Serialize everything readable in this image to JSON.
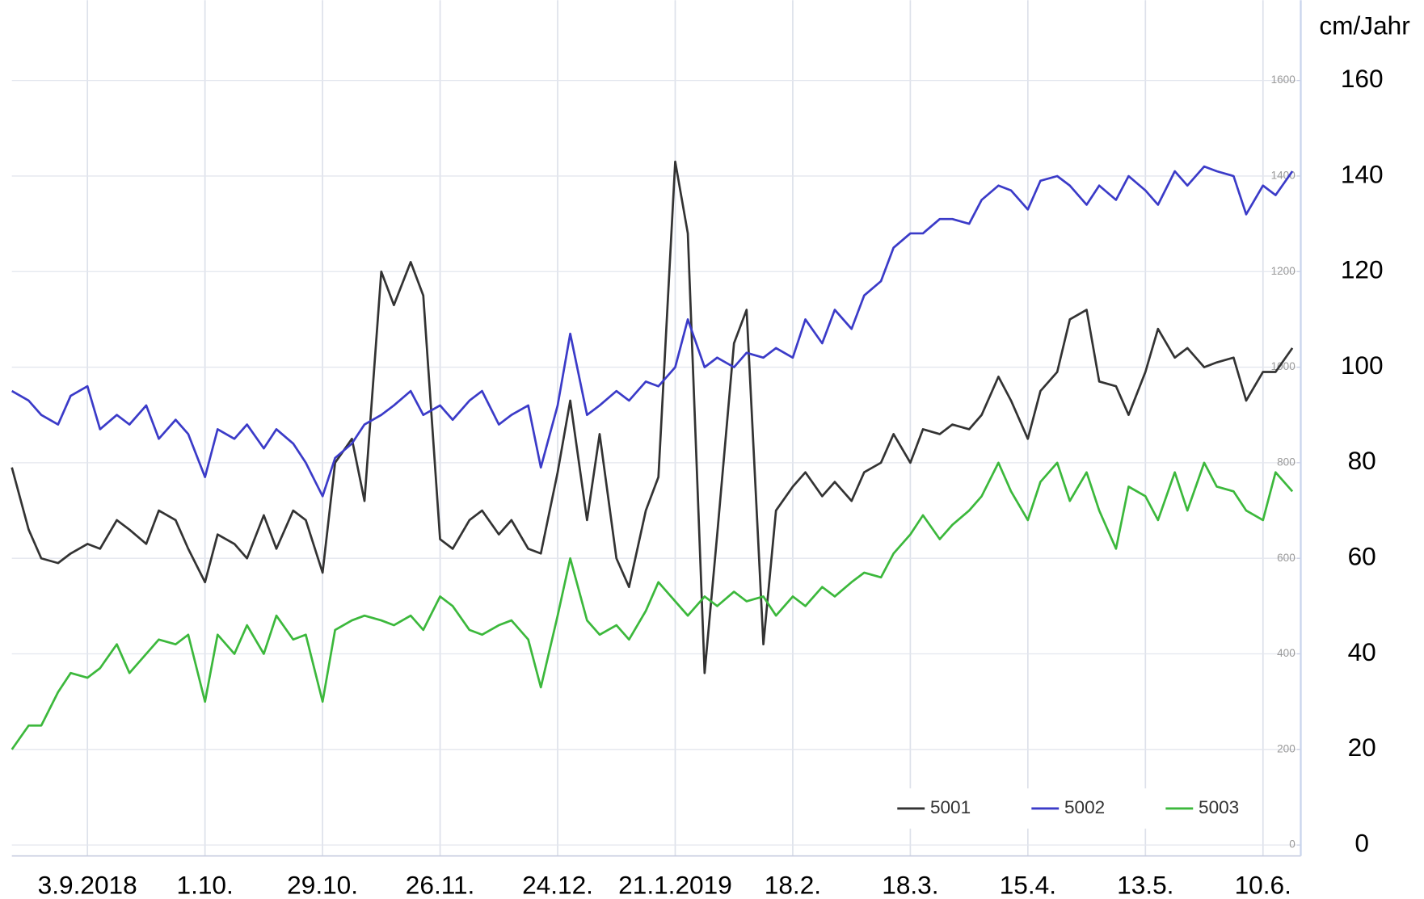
{
  "chart_data": {
    "type": "line",
    "y_label": "cm/Jahr",
    "x": [
      "2018-08-16",
      "2018-08-20",
      "2018-08-23",
      "2018-08-27",
      "2018-08-30",
      "2018-09-03",
      "2018-09-06",
      "2018-09-10",
      "2018-09-13",
      "2018-09-17",
      "2018-09-20",
      "2018-09-24",
      "2018-09-27",
      "2018-10-01",
      "2018-10-04",
      "2018-10-08",
      "2018-10-11",
      "2018-10-15",
      "2018-10-18",
      "2018-10-22",
      "2018-10-25",
      "2018-10-29",
      "2018-11-01",
      "2018-11-05",
      "2018-11-08",
      "2018-11-12",
      "2018-11-15",
      "2018-11-19",
      "2018-11-22",
      "2018-11-26",
      "2018-11-29",
      "2018-12-03",
      "2018-12-06",
      "2018-12-10",
      "2018-12-13",
      "2018-12-17",
      "2018-12-20",
      "2018-12-24",
      "2018-12-27",
      "2018-12-31",
      "2019-01-03",
      "2019-01-07",
      "2019-01-10",
      "2019-01-14",
      "2019-01-17",
      "2019-01-21",
      "2019-01-24",
      "2019-01-28",
      "2019-01-31",
      "2019-02-04",
      "2019-02-07",
      "2019-02-11",
      "2019-02-14",
      "2019-02-18",
      "2019-02-21",
      "2019-02-25",
      "2019-02-28",
      "2019-03-04",
      "2019-03-07",
      "2019-03-11",
      "2019-03-14",
      "2019-03-18",
      "2019-03-21",
      "2019-03-25",
      "2019-03-28",
      "2019-04-01",
      "2019-04-04",
      "2019-04-08",
      "2019-04-11",
      "2019-04-15",
      "2019-04-18",
      "2019-04-22",
      "2019-04-25",
      "2019-04-29",
      "2019-05-02",
      "2019-05-06",
      "2019-05-09",
      "2019-05-13",
      "2019-05-16",
      "2019-05-20",
      "2019-05-23",
      "2019-05-27",
      "2019-05-30",
      "2019-06-03",
      "2019-06-06",
      "2019-06-10",
      "2019-06-13",
      "2019-06-17"
    ],
    "xlim": [
      "2018-08-16",
      "2019-06-19"
    ],
    "xticks": [
      {
        "value": "2018-09-03",
        "label": "3.9.2018"
      },
      {
        "value": "2018-10-01",
        "label": "1.10."
      },
      {
        "value": "2018-10-29",
        "label": "29.10."
      },
      {
        "value": "2018-11-26",
        "label": "26.11."
      },
      {
        "value": "2018-12-24",
        "label": "24.12."
      },
      {
        "value": "2019-01-21",
        "label": "21.1.2019"
      },
      {
        "value": "2019-02-18",
        "label": "18.2."
      },
      {
        "value": "2019-03-18",
        "label": "18.3."
      },
      {
        "value": "2019-04-15",
        "label": "15.4."
      },
      {
        "value": "2019-05-13",
        "label": "13.5."
      },
      {
        "value": "2019-06-10",
        "label": "10.6."
      }
    ],
    "ylim": [
      0,
      160
    ],
    "yticks": [
      0,
      20,
      40,
      60,
      80,
      100,
      120,
      140,
      160
    ],
    "y2lim": [
      0,
      1600
    ],
    "y2ticks": [
      0,
      200,
      400,
      600,
      800,
      1000,
      1200,
      1400,
      1600
    ],
    "grid": true,
    "legend": "lower right",
    "series": [
      {
        "name": "5001",
        "color": "#333333",
        "values": [
          79,
          66,
          60,
          59,
          61,
          63,
          62,
          68,
          66,
          63,
          70,
          68,
          62,
          55,
          65,
          63,
          60,
          69,
          62,
          70,
          68,
          57,
          80,
          85,
          72,
          120,
          113,
          122,
          115,
          64,
          62,
          68,
          70,
          65,
          68,
          62,
          61,
          78,
          93,
          68,
          86,
          60,
          54,
          70,
          77,
          143,
          128,
          36,
          65,
          105,
          112,
          42,
          70,
          75,
          78,
          73,
          76,
          72,
          78,
          80,
          86,
          80,
          87,
          86,
          88,
          87,
          90,
          98,
          93,
          85,
          95,
          99,
          110,
          112,
          97,
          96,
          90,
          99,
          108,
          102,
          104,
          100,
          101,
          102,
          93,
          99,
          99,
          104
        ]
      },
      {
        "name": "5002",
        "color": "#3b3bc8",
        "values": [
          95,
          93,
          90,
          88,
          94,
          96,
          87,
          90,
          88,
          92,
          85,
          89,
          86,
          77,
          87,
          85,
          88,
          83,
          87,
          84,
          80,
          73,
          81,
          84,
          88,
          90,
          92,
          95,
          90,
          92,
          89,
          93,
          95,
          88,
          90,
          92,
          79,
          92,
          107,
          90,
          92,
          95,
          93,
          97,
          96,
          100,
          110,
          100,
          102,
          100,
          103,
          102,
          104,
          102,
          110,
          105,
          112,
          108,
          115,
          118,
          125,
          128,
          128,
          131,
          131,
          130,
          135,
          138,
          137,
          133,
          139,
          140,
          138,
          134,
          138,
          135,
          140,
          137,
          134,
          141,
          138,
          142,
          141,
          140,
          132,
          138,
          136,
          141
        ]
      },
      {
        "name": "5003",
        "color": "#3cb83c",
        "values": [
          20,
          25,
          25,
          32,
          36,
          35,
          37,
          42,
          36,
          40,
          43,
          42,
          44,
          30,
          44,
          40,
          46,
          40,
          48,
          43,
          44,
          30,
          45,
          47,
          48,
          47,
          46,
          48,
          45,
          52,
          50,
          45,
          44,
          46,
          47,
          43,
          33,
          48,
          60,
          47,
          44,
          46,
          43,
          49,
          55,
          51,
          48,
          52,
          50,
          53,
          51,
          52,
          48,
          52,
          50,
          54,
          52,
          55,
          57,
          56,
          61,
          65,
          69,
          64,
          67,
          70,
          73,
          80,
          74,
          68,
          76,
          80,
          72,
          78,
          70,
          62,
          75,
          73,
          68,
          78,
          70,
          80,
          75,
          74,
          70,
          68,
          78,
          74
        ]
      }
    ]
  }
}
